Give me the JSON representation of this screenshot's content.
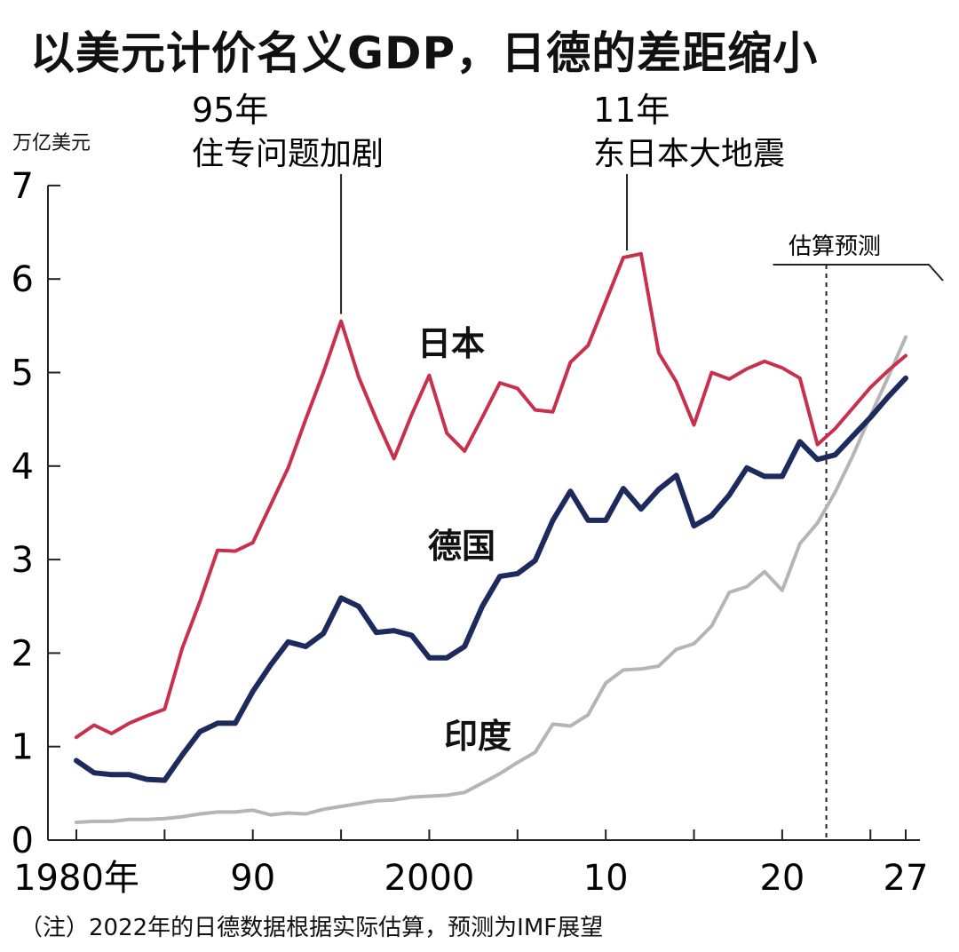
{
  "chart_data": {
    "type": "line",
    "title": "以美元计价名义GDP，日德的差距缩小",
    "ylabel": "万亿美元",
    "ylim": [
      0,
      7
    ],
    "yticks": [
      "0",
      "1",
      "2",
      "3",
      "4",
      "5",
      "6",
      "7"
    ],
    "xlim": [
      1980,
      2027
    ],
    "xticks": [
      {
        "x": 1980,
        "label": "1980年"
      },
      {
        "x": 1990,
        "label": "90"
      },
      {
        "x": 2000,
        "label": "2000"
      },
      {
        "x": 2010,
        "label": "10"
      },
      {
        "x": 2020,
        "label": "20"
      },
      {
        "x": 2027,
        "label": "27"
      }
    ],
    "x": [
      1980,
      1981,
      1982,
      1983,
      1984,
      1985,
      1986,
      1987,
      1988,
      1989,
      1990,
      1991,
      1992,
      1993,
      1994,
      1995,
      1996,
      1997,
      1998,
      1999,
      2000,
      2001,
      2002,
      2003,
      2004,
      2005,
      2006,
      2007,
      2008,
      2009,
      2010,
      2011,
      2012,
      2013,
      2014,
      2015,
      2016,
      2017,
      2018,
      2019,
      2020,
      2021,
      2022,
      2023,
      2024,
      2025,
      2026,
      2027
    ],
    "series": [
      {
        "name": "日本",
        "color": "#c8304c",
        "values": [
          1.1,
          1.23,
          1.14,
          1.25,
          1.33,
          1.4,
          2.05,
          2.55,
          3.1,
          3.09,
          3.18,
          3.58,
          3.98,
          4.5,
          5.0,
          5.55,
          4.95,
          4.5,
          4.08,
          4.55,
          4.97,
          4.35,
          4.16,
          4.52,
          4.89,
          4.83,
          4.6,
          4.58,
          5.11,
          5.29,
          5.76,
          6.23,
          6.27,
          5.21,
          4.9,
          4.44,
          5.0,
          4.93,
          5.04,
          5.12,
          5.05,
          4.94,
          4.23,
          4.4,
          4.62,
          4.84,
          5.02,
          5.18
        ]
      },
      {
        "name": "德国",
        "color": "#1c2a5e",
        "values": [
          0.85,
          0.72,
          0.7,
          0.7,
          0.65,
          0.64,
          0.91,
          1.16,
          1.25,
          1.25,
          1.59,
          1.87,
          2.12,
          2.07,
          2.21,
          2.59,
          2.5,
          2.22,
          2.24,
          2.19,
          1.95,
          1.95,
          2.07,
          2.5,
          2.82,
          2.85,
          2.99,
          3.42,
          3.73,
          3.42,
          3.42,
          3.76,
          3.54,
          3.75,
          3.9,
          3.36,
          3.47,
          3.69,
          3.98,
          3.89,
          3.89,
          4.26,
          4.07,
          4.12,
          4.32,
          4.52,
          4.74,
          4.94
        ]
      },
      {
        "name": "印度",
        "color": "#b5b5b5",
        "values": [
          0.19,
          0.2,
          0.2,
          0.22,
          0.22,
          0.23,
          0.25,
          0.28,
          0.3,
          0.3,
          0.32,
          0.27,
          0.29,
          0.28,
          0.33,
          0.36,
          0.39,
          0.42,
          0.43,
          0.46,
          0.47,
          0.48,
          0.51,
          0.61,
          0.71,
          0.83,
          0.94,
          1.24,
          1.22,
          1.34,
          1.68,
          1.82,
          1.83,
          1.86,
          2.04,
          2.1,
          2.29,
          2.65,
          2.71,
          2.87,
          2.67,
          3.17,
          3.39,
          3.72,
          4.11,
          4.54,
          4.95,
          5.38
        ]
      }
    ],
    "annotations": [
      {
        "x": 1995,
        "year_label": "95年",
        "text": "住专问题加剧"
      },
      {
        "x": 2011,
        "year_label": "11年",
        "text": "东日本大地震"
      }
    ],
    "forecast": {
      "label": "估算预测",
      "start_x": 2022.5
    },
    "footnote": "（注）2022年的日德数据根据实际估算，预测为IMF展望",
    "grid": false,
    "legend": "inline labels"
  }
}
